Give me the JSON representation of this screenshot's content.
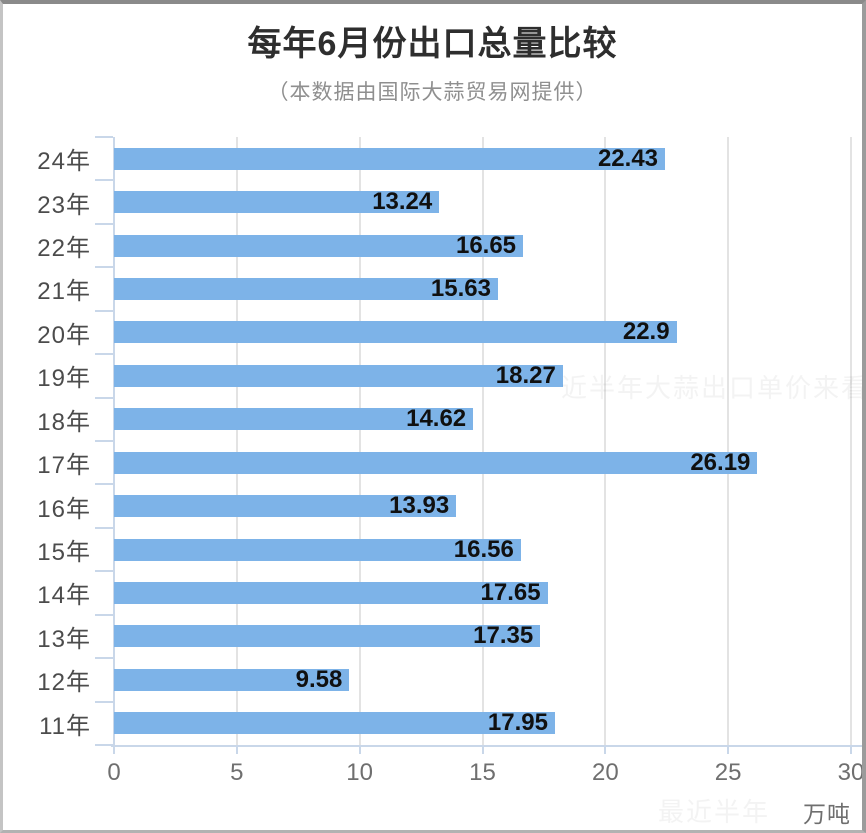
{
  "chart_data": {
    "type": "bar",
    "orientation": "horizontal",
    "title": "每年6月份出口总量比较",
    "subtitle": "（本数据由国际大蒜贸易网提供）",
    "categories": [
      "24年",
      "23年",
      "22年",
      "21年",
      "20年",
      "19年",
      "18年",
      "17年",
      "16年",
      "15年",
      "14年",
      "13年",
      "12年",
      "11年"
    ],
    "values": [
      22.43,
      13.24,
      16.65,
      15.63,
      22.9,
      18.27,
      14.62,
      26.19,
      13.93,
      16.56,
      17.65,
      17.35,
      9.58,
      17.95
    ],
    "value_labels": [
      "22.43",
      "13.24",
      "16.65",
      "15.63",
      "22.9",
      "18.27",
      "14.62",
      "26.19",
      "13.93",
      "16.56",
      "17.65",
      "17.35",
      "9.58",
      "17.95"
    ],
    "x_ticks": [
      0,
      5,
      10,
      15,
      20,
      25,
      30
    ],
    "xlim": [
      0,
      30
    ],
    "unit_label": "万吨",
    "grid": true,
    "legend": "none",
    "bar_color": "#7db3e8",
    "value_label_color": "#101010",
    "axis_line_color": "#c9d7e9",
    "gridline_color": "#e3e3e3"
  },
  "watermarks": [
    {
      "text": "近半年大蒜出口单价来看，"
    },
    {
      "text": "最近半年"
    }
  ]
}
